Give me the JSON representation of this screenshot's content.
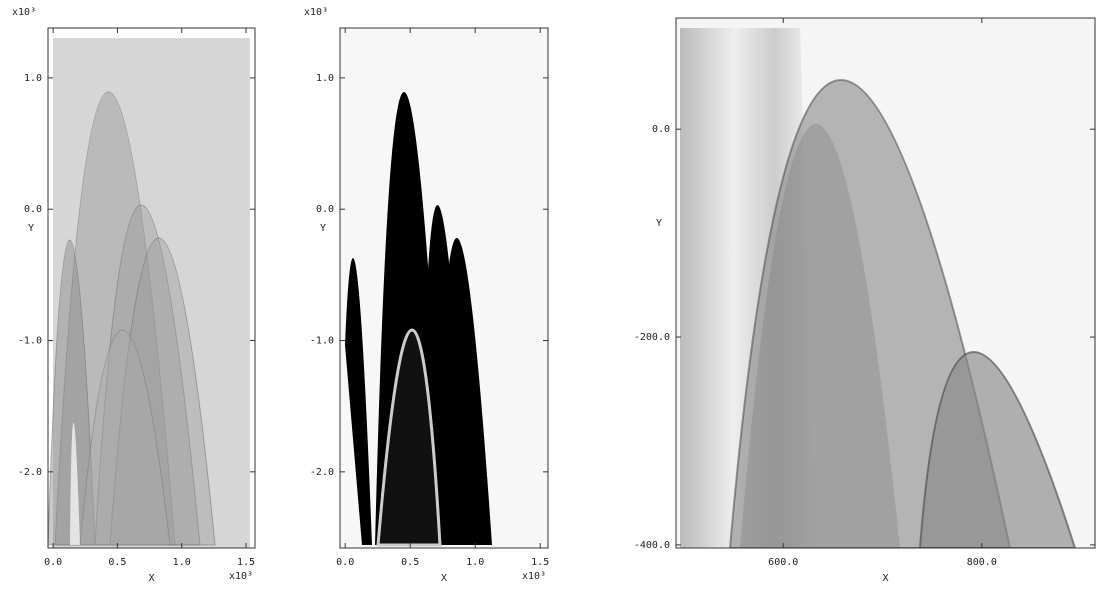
{
  "chart_data": [
    {
      "type": "image",
      "xlabel": "X",
      "ylabel": "Y",
      "x_scale_label": "x10³",
      "y_scale_label": "x10³",
      "xlim": [
        -0.04,
        1.57
      ],
      "ylim": [
        -2.58,
        1.38
      ],
      "xticks": [
        {
          "value": 0.0,
          "label": "0.0"
        },
        {
          "value": 0.5,
          "label": "0.5"
        },
        {
          "value": 1.0,
          "label": "1.0"
        },
        {
          "value": 1.5,
          "label": "1.5"
        }
      ],
      "yticks": [
        {
          "value": 1.0,
          "label": "1.0"
        },
        {
          "value": 0.0,
          "label": "0.0"
        },
        {
          "value": -1.0,
          "label": "-1.0"
        },
        {
          "value": -2.0,
          "label": "-2.0"
        }
      ]
    },
    {
      "type": "image",
      "xlabel": "X",
      "ylabel": "Y",
      "x_scale_label": "x10³",
      "y_scale_label": "x10³",
      "xlim": [
        -0.04,
        1.56
      ],
      "ylim": [
        -2.58,
        1.38
      ],
      "xticks": [
        {
          "value": 0.0,
          "label": "0.0"
        },
        {
          "value": 0.5,
          "label": "0.5"
        },
        {
          "value": 1.0,
          "label": "1.0"
        },
        {
          "value": 1.5,
          "label": "1.5"
        }
      ],
      "yticks": [
        {
          "value": 1.0,
          "label": "1.0"
        },
        {
          "value": 0.0,
          "label": "0.0"
        },
        {
          "value": -1.0,
          "label": "-1.0"
        },
        {
          "value": -2.0,
          "label": "-2.0"
        }
      ]
    },
    {
      "type": "image",
      "xlabel": "X",
      "ylabel": "Y",
      "xlim": [
        492,
        914
      ],
      "ylim": [
        -403,
        107
      ],
      "xticks": [
        {
          "value": 600,
          "label": "600.0"
        },
        {
          "value": 800,
          "label": "800.0"
        }
      ],
      "yticks": [
        {
          "value": 0,
          "label": "0.0"
        },
        {
          "value": -200,
          "label": "-200.0"
        },
        {
          "value": -400,
          "label": "-400.0"
        }
      ]
    }
  ]
}
